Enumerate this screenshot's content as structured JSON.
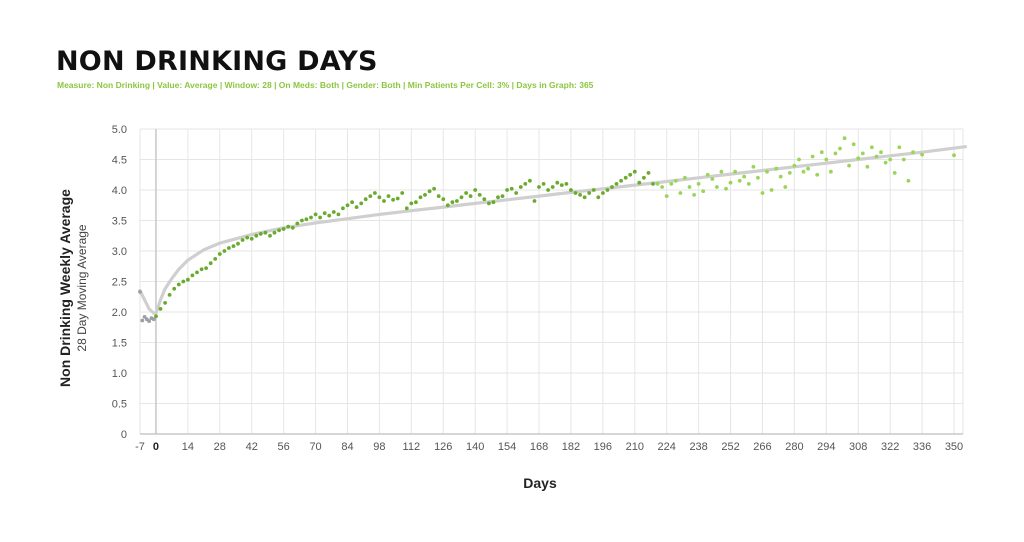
{
  "header": {
    "title": "NON DRINKING DAYS",
    "subtitle": "Measure: Non Drinking  |  Value: Average  |  Window: 28  |  On Meds: Both  |  Gender: Both  |  Min Patients Per Cell: 3%  |  Days in Graph: 365"
  },
  "colors": {
    "points_dark": "#6aab2e",
    "points_light": "#9ad55a",
    "points_pre": "#9aa0a6",
    "trend": "#cfcfcf",
    "grid": "#e6e6e6",
    "accent": "#8cc63f"
  },
  "chart_data": {
    "type": "scatter",
    "title": "NON DRINKING DAYS",
    "xlabel": "Days",
    "ylabel": "Non Drinking Weekly Average",
    "ylabel_sub": "28 Day Moving Average",
    "xlim": [
      -7,
      355
    ],
    "ylim": [
      0,
      5
    ],
    "x_ticks": [
      "-7",
      "0",
      "14",
      "28",
      "42",
      "56",
      "70",
      "84",
      "98",
      "112",
      "126",
      "140",
      "154",
      "168",
      "182",
      "196",
      "210",
      "224",
      "238",
      "252",
      "266",
      "280",
      "294",
      "308",
      "322",
      "336",
      "350"
    ],
    "x_tick_values": [
      -7,
      0,
      14,
      28,
      42,
      56,
      70,
      84,
      98,
      112,
      126,
      140,
      154,
      168,
      182,
      196,
      210,
      224,
      238,
      252,
      266,
      280,
      294,
      308,
      322,
      336,
      350
    ],
    "y_ticks": [
      "0",
      "0.5",
      "1.0",
      "1.5",
      "2.0",
      "2.5",
      "3.0",
      "3.5",
      "4.0",
      "4.5",
      "5.0"
    ],
    "y_tick_values": [
      0,
      0.5,
      1.0,
      1.5,
      2.0,
      2.5,
      3.0,
      3.5,
      4.0,
      4.5,
      5.0
    ],
    "grid": true,
    "legend": "none",
    "trendline": {
      "x": [
        -7,
        -5,
        -3,
        -1,
        0,
        2,
        4,
        7,
        10,
        14,
        21,
        28,
        35,
        42,
        56,
        70,
        84,
        98,
        112,
        126,
        140,
        154,
        168,
        182,
        196,
        210,
        224,
        238,
        252,
        266,
        280,
        294,
        308,
        322,
        336,
        355
      ],
      "y": [
        2.35,
        2.2,
        2.05,
        1.98,
        1.98,
        2.2,
        2.38,
        2.55,
        2.7,
        2.85,
        3.02,
        3.13,
        3.2,
        3.27,
        3.38,
        3.46,
        3.53,
        3.6,
        3.66,
        3.72,
        3.78,
        3.84,
        3.9,
        3.96,
        4.02,
        4.08,
        4.14,
        4.2,
        4.26,
        4.32,
        4.38,
        4.44,
        4.5,
        4.56,
        4.62,
        4.71
      ]
    },
    "series": [
      {
        "x": [
          -7,
          -6,
          -5,
          -4,
          -3,
          -2,
          -1
        ],
        "y": [
          2.33,
          1.86,
          1.92,
          1.88,
          1.85,
          1.9,
          1.88
        ]
      },
      {
        "x": [
          0,
          2,
          4,
          6,
          8,
          10,
          12,
          14,
          16,
          18,
          20,
          22,
          24,
          26,
          28,
          30,
          32,
          34,
          36,
          38,
          40,
          42,
          44,
          46,
          48,
          50,
          52,
          54,
          56,
          58,
          60,
          62,
          64,
          66,
          68,
          70,
          72,
          74,
          76,
          78,
          80,
          82,
          84,
          86,
          88,
          90,
          92,
          94,
          96,
          98,
          100,
          102,
          104,
          106,
          108,
          110,
          112,
          114,
          116,
          118,
          120,
          122,
          124,
          126,
          128,
          130,
          132,
          134,
          136,
          138,
          140,
          142,
          144,
          146,
          148,
          150,
          152,
          154,
          156,
          158,
          160,
          162,
          164,
          166,
          168,
          170,
          172,
          174,
          176,
          178,
          180,
          182,
          184,
          186,
          188,
          190,
          192,
          194,
          196,
          198,
          200,
          202,
          204,
          206,
          208,
          210,
          212,
          214,
          216,
          218
        ],
        "y": [
          1.93,
          2.05,
          2.15,
          2.28,
          2.38,
          2.45,
          2.5,
          2.53,
          2.6,
          2.65,
          2.7,
          2.72,
          2.8,
          2.87,
          2.95,
          3.0,
          3.05,
          3.08,
          3.12,
          3.18,
          3.22,
          3.2,
          3.25,
          3.28,
          3.3,
          3.25,
          3.3,
          3.34,
          3.36,
          3.4,
          3.38,
          3.45,
          3.5,
          3.52,
          3.55,
          3.6,
          3.55,
          3.62,
          3.58,
          3.64,
          3.6,
          3.7,
          3.75,
          3.8,
          3.72,
          3.78,
          3.85,
          3.9,
          3.95,
          3.88,
          3.82,
          3.9,
          3.84,
          3.86,
          3.95,
          3.7,
          3.78,
          3.8,
          3.88,
          3.92,
          3.98,
          4.02,
          3.9,
          3.85,
          3.75,
          3.8,
          3.82,
          3.88,
          3.95,
          3.9,
          4.0,
          3.92,
          3.85,
          3.78,
          3.8,
          3.88,
          3.9,
          4.0,
          4.02,
          3.95,
          4.05,
          4.1,
          4.15,
          3.82,
          4.05,
          4.1,
          4.0,
          4.05,
          4.12,
          4.08,
          4.1,
          4.0,
          3.95,
          3.92,
          3.88,
          3.95,
          4.0,
          3.88,
          3.95,
          4.0,
          4.05,
          4.1,
          4.15,
          4.2,
          4.25,
          4.3,
          4.12,
          4.2,
          4.28,
          4.1
        ]
      },
      {
        "x": [
          220,
          222,
          224,
          226,
          228,
          230,
          232,
          234,
          236,
          238,
          240,
          242,
          244,
          246,
          248,
          250,
          252,
          254,
          256,
          258,
          260,
          262,
          264,
          266,
          268,
          270,
          272,
          274,
          276,
          278,
          280,
          282,
          284,
          286,
          288,
          290,
          292,
          294,
          296,
          298,
          300,
          302,
          304,
          306,
          308,
          310,
          312,
          314,
          316,
          318,
          320,
          322,
          324,
          326,
          328,
          330,
          332,
          336,
          350
        ],
        "y": [
          4.1,
          4.05,
          3.9,
          4.1,
          4.15,
          3.95,
          4.2,
          4.05,
          3.92,
          4.1,
          3.98,
          4.25,
          4.18,
          4.05,
          4.3,
          4.02,
          4.12,
          4.3,
          4.15,
          4.22,
          4.1,
          4.38,
          4.2,
          3.95,
          4.3,
          4.0,
          4.35,
          4.22,
          4.05,
          4.28,
          4.4,
          4.5,
          4.3,
          4.35,
          4.55,
          4.25,
          4.62,
          4.5,
          4.3,
          4.6,
          4.68,
          4.85,
          4.4,
          4.75,
          4.52,
          4.6,
          4.38,
          4.7,
          4.55,
          4.62,
          4.45,
          4.5,
          4.28,
          4.7,
          4.5,
          4.15,
          4.62,
          4.58,
          4.57
        ]
      }
    ]
  }
}
